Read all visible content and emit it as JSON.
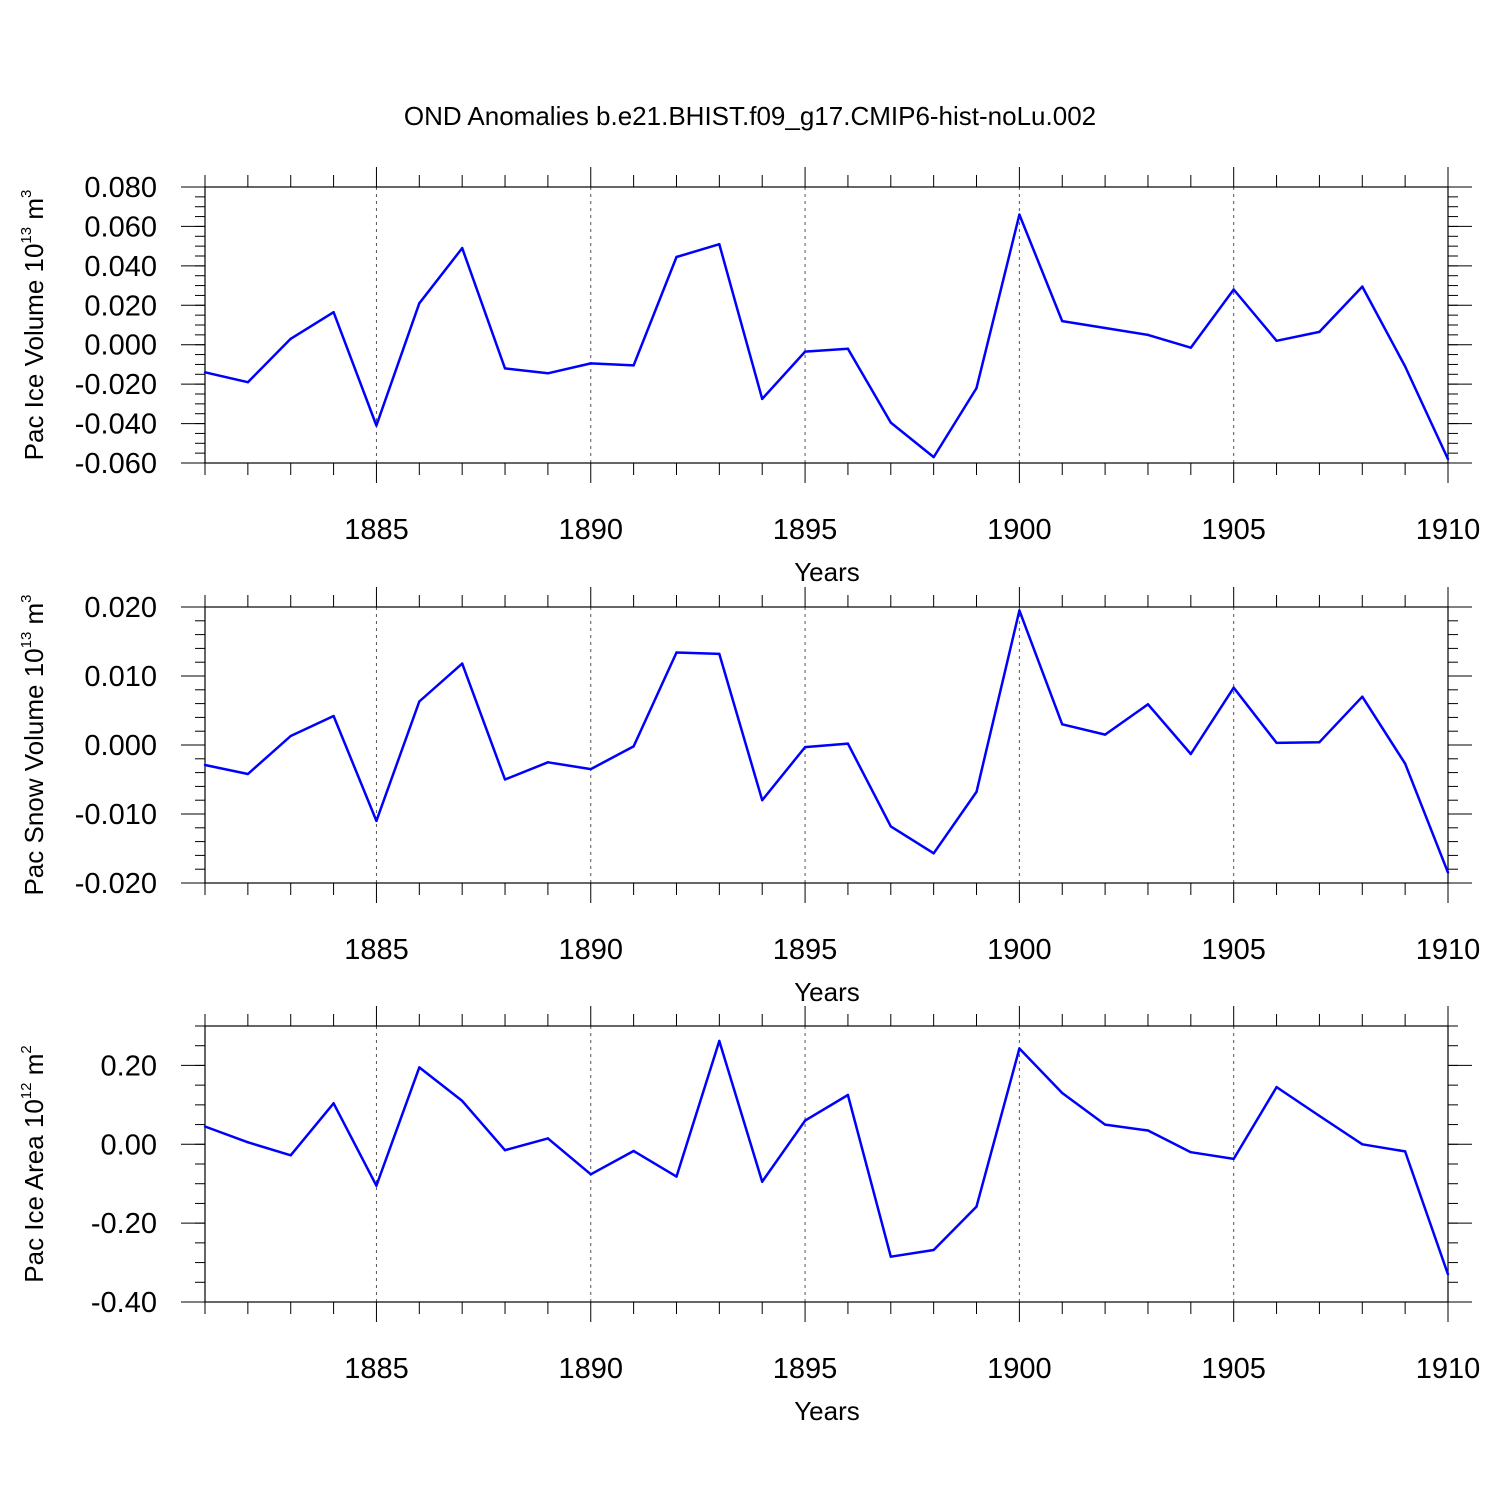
{
  "chart_data": {
    "title": "OND Anomalies b.e21.BHIST.f09_g17.CMIP6-hist-noLu.002",
    "type": "line",
    "line_color": "#0000ff",
    "grid": "vertical dashed at major x ticks",
    "x": [
      1881,
      1882,
      1883,
      1884,
      1885,
      1886,
      1887,
      1888,
      1889,
      1890,
      1891,
      1892,
      1893,
      1894,
      1895,
      1896,
      1897,
      1898,
      1899,
      1900,
      1901,
      1902,
      1903,
      1904,
      1905,
      1906,
      1907,
      1908,
      1909,
      1910
    ],
    "xlim": [
      1881,
      1910
    ],
    "x_ticks": [
      1885,
      1890,
      1895,
      1900,
      1905,
      1910
    ],
    "x_tick_labels": [
      "1885",
      "1890",
      "1895",
      "1900",
      "1905",
      "1910"
    ],
    "panels": [
      {
        "ylabel": {
          "prefix": "Pac Ice Volume 10",
          "exp1": "13",
          "mid": " m",
          "exp2": "3"
        },
        "xlabel": "Years",
        "ylim": [
          -0.06,
          0.08
        ],
        "y_ticks": [
          -0.06,
          -0.04,
          -0.02,
          0.0,
          0.02,
          0.04,
          0.06,
          0.08
        ],
        "y_tick_labels": [
          "-0.060",
          "-0.040",
          "-0.020",
          "0.000",
          "0.020",
          "0.040",
          "0.060",
          "0.080"
        ],
        "y_minor_step": 0.005,
        "values": [
          -0.014,
          -0.019,
          0.003,
          0.0165,
          -0.041,
          0.021,
          0.049,
          -0.012,
          -0.0145,
          -0.0095,
          -0.0105,
          0.0445,
          0.051,
          -0.0275,
          -0.0035,
          -0.002,
          -0.0395,
          -0.057,
          -0.022,
          0.066,
          0.012,
          0.0085,
          0.005,
          -0.0015,
          0.028,
          0.002,
          0.0065,
          0.0295,
          -0.011,
          -0.058
        ]
      },
      {
        "ylabel": {
          "prefix": "Pac Snow Volume 10",
          "exp1": "13",
          "mid": " m",
          "exp2": "3"
        },
        "xlabel": "Years",
        "ylim": [
          -0.02,
          0.02
        ],
        "y_ticks": [
          -0.02,
          -0.01,
          0.0,
          0.01,
          0.02
        ],
        "y_tick_labels": [
          "-0.020",
          "-0.010",
          "0.000",
          "0.010",
          "0.020"
        ],
        "y_minor_step": 0.002,
        "values": [
          -0.0029,
          -0.0042,
          0.0013,
          0.0042,
          -0.011,
          0.0063,
          0.0118,
          -0.005,
          -0.0025,
          -0.0035,
          -0.0002,
          0.0134,
          0.0132,
          -0.008,
          -0.0003,
          0.0002,
          -0.0118,
          -0.0157,
          -0.0068,
          0.0195,
          0.003,
          0.0015,
          0.0059,
          -0.0013,
          0.0083,
          0.0003,
          0.0004,
          0.007,
          -0.0027,
          -0.0185
        ]
      },
      {
        "ylabel": {
          "prefix": "Pac Ice Area 10",
          "exp1": "12",
          "mid": " m",
          "exp2": "2"
        },
        "xlabel": "Years",
        "ylim": [
          -0.4,
          0.3
        ],
        "y_ticks": [
          -0.4,
          -0.2,
          0.0,
          0.2
        ],
        "y_tick_labels": [
          "-0.40",
          "-0.20",
          "0.00",
          "0.20"
        ],
        "y_minor_step": 0.05,
        "values": [
          0.045,
          0.005,
          -0.028,
          0.104,
          -0.105,
          0.195,
          0.11,
          -0.015,
          0.015,
          -0.076,
          -0.017,
          -0.082,
          0.262,
          -0.095,
          0.06,
          0.125,
          -0.285,
          -0.268,
          -0.158,
          0.243,
          0.13,
          0.05,
          0.035,
          -0.02,
          -0.037,
          0.145,
          0.072,
          0.0,
          -0.018,
          -0.33
        ]
      }
    ]
  }
}
